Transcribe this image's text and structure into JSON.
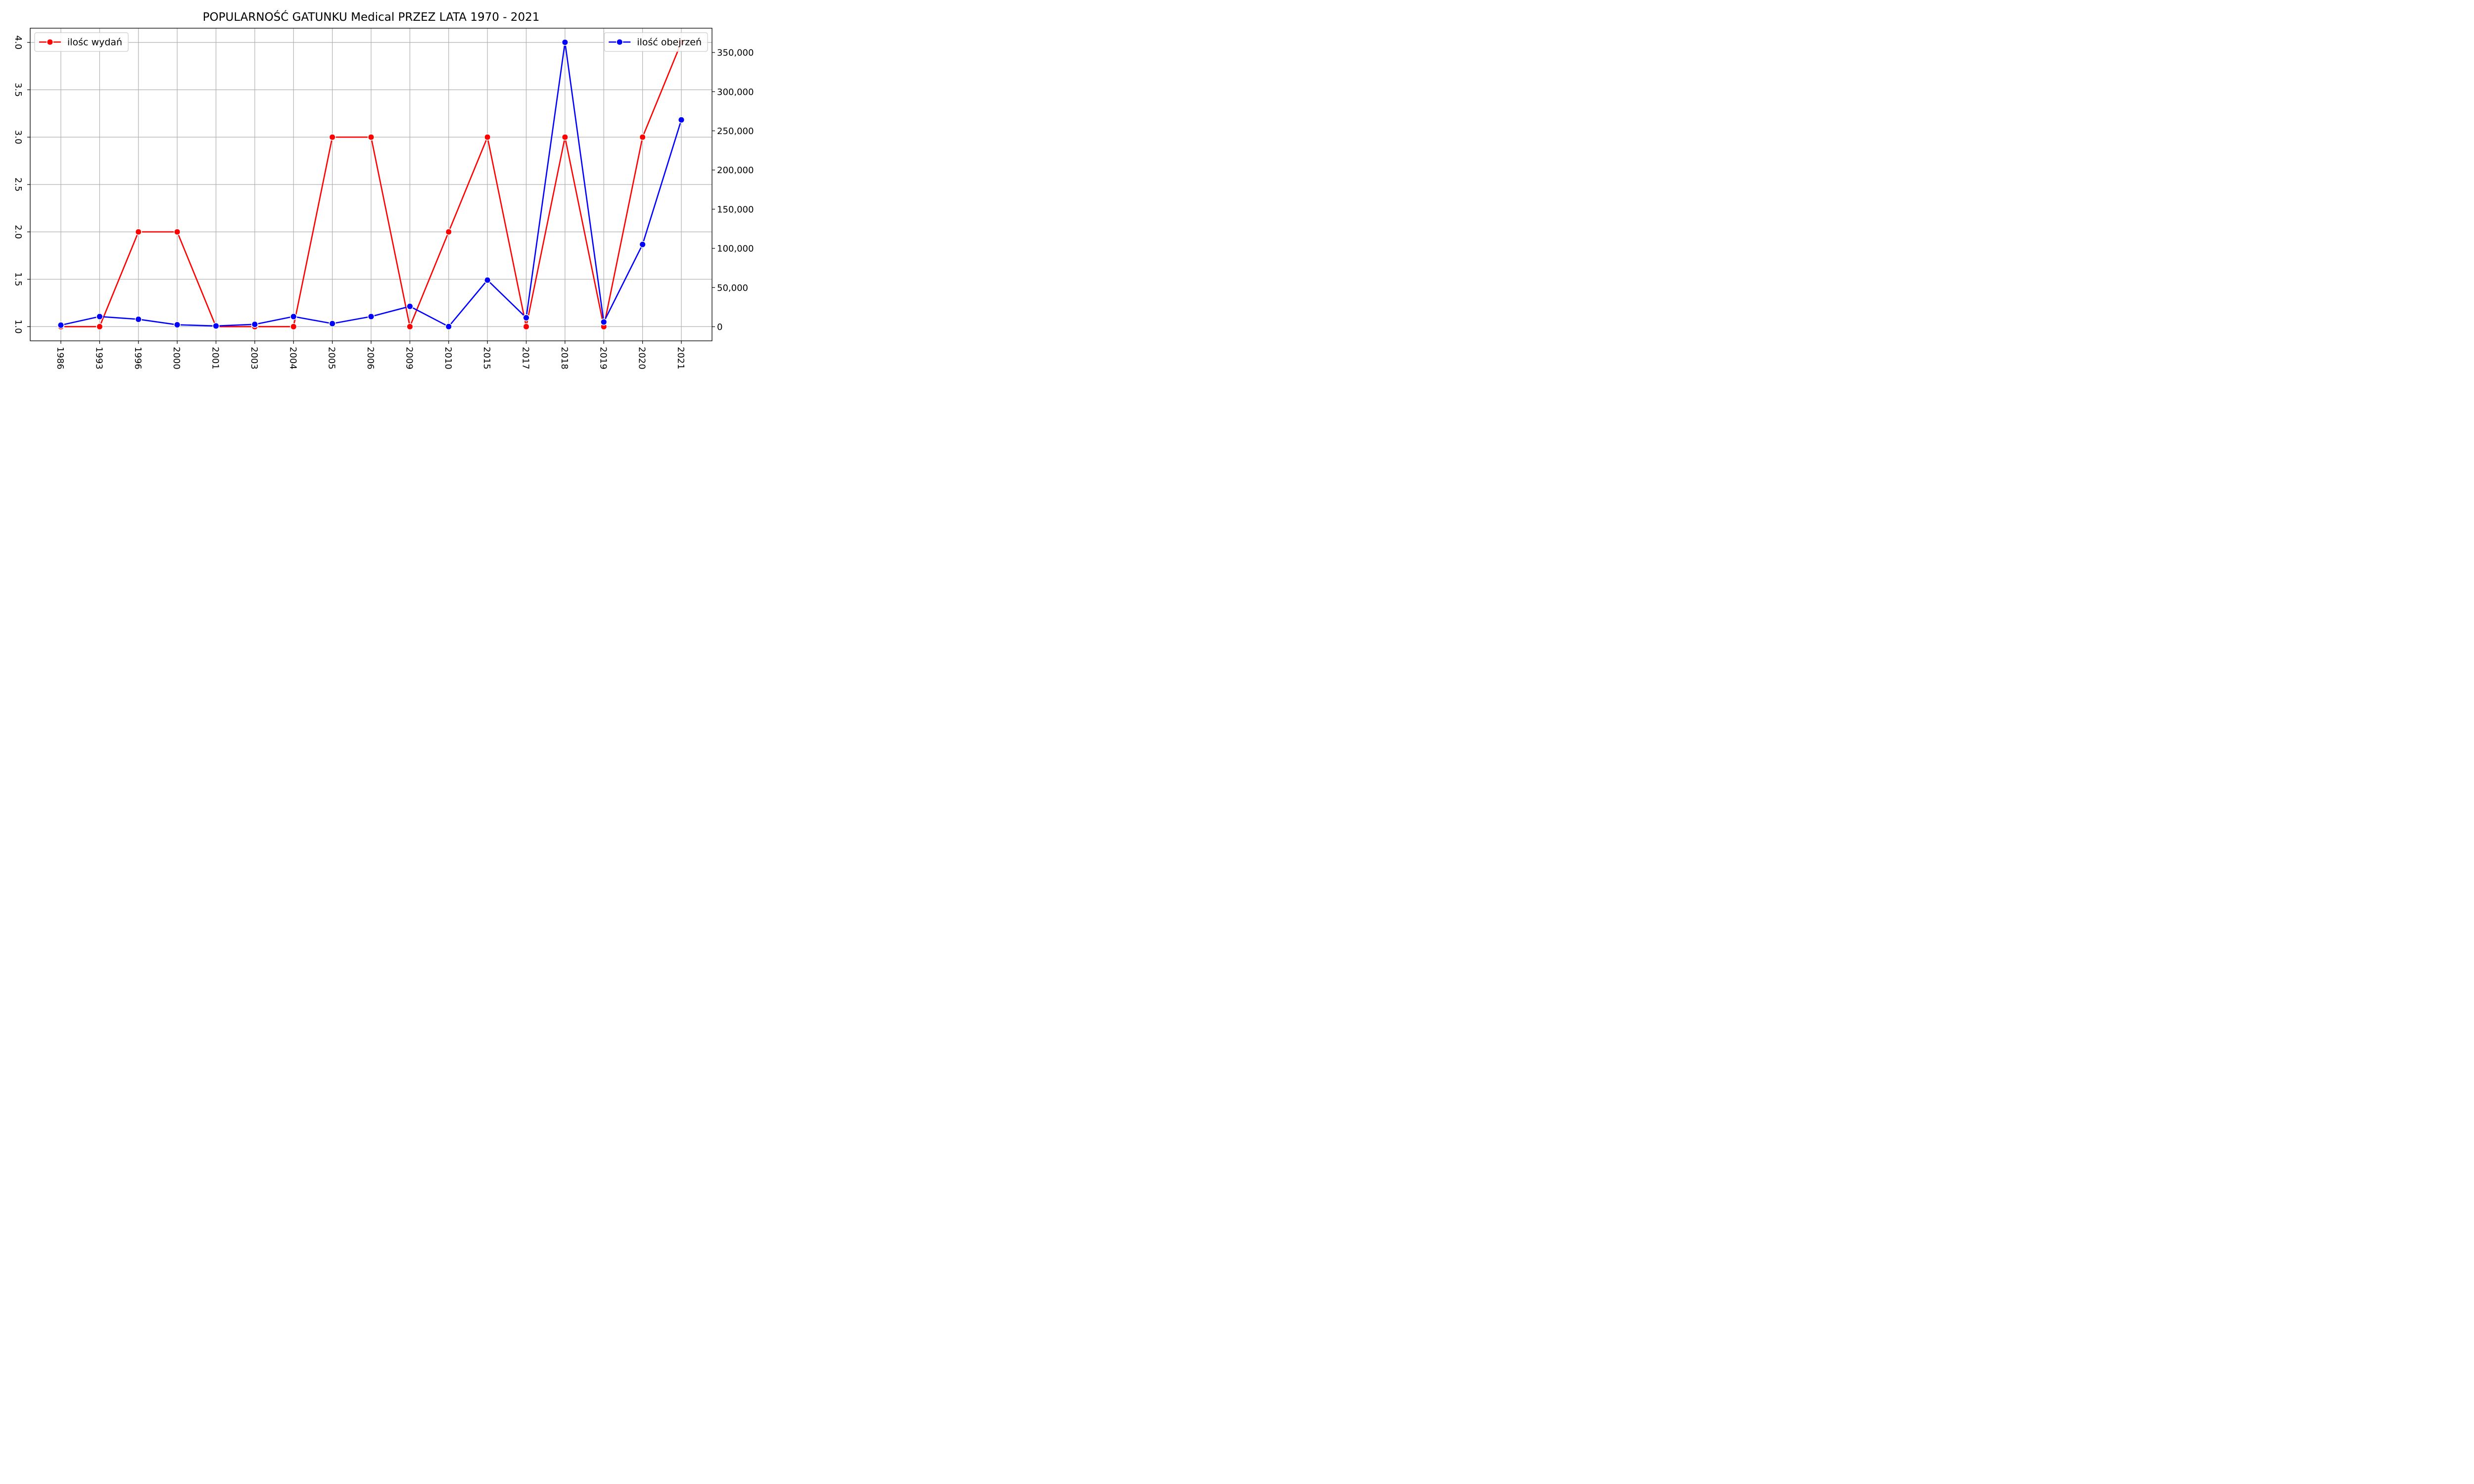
{
  "chart_data": {
    "type": "line",
    "title": "POPULARNOŚĆ GATUNKU Medical PRZEZ LATA 1970 - 2021",
    "xlabel": "",
    "ylabel_left": "",
    "ylabel_right": "",
    "categories": [
      "1986",
      "1993",
      "1996",
      "2000",
      "2001",
      "2003",
      "2004",
      "2005",
      "2006",
      "2009",
      "2010",
      "2015",
      "2017",
      "2018",
      "2019",
      "2020",
      "2021"
    ],
    "grid": true,
    "series": [
      {
        "name": "ilośc wydań",
        "axis": "left",
        "color": "#ff0000",
        "values": [
          1,
          1,
          2,
          2,
          1,
          1,
          1,
          3,
          3,
          1,
          2,
          3,
          1,
          3,
          1,
          3,
          4
        ]
      },
      {
        "name": "ilość obejrzeń",
        "axis": "right",
        "color": "#0000ff",
        "values": [
          2000,
          13000,
          9500,
          2500,
          1000,
          3000,
          13000,
          4000,
          13000,
          26000,
          200,
          59500,
          11500,
          363000,
          6000,
          105000,
          264000
        ]
      }
    ],
    "y_left": {
      "lim": [
        0.85,
        4.15
      ],
      "ticks": [
        1.0,
        1.5,
        2.0,
        2.5,
        3.0,
        3.5,
        4.0
      ],
      "tick_labels": [
        "1.0",
        "1.5",
        "2.0",
        "2.5",
        "3.0",
        "3.5",
        "4.0"
      ]
    },
    "y_right": {
      "lim": [
        -18000,
        381000
      ],
      "ticks": [
        0,
        50000,
        100000,
        150000,
        200000,
        250000,
        300000,
        350000
      ],
      "tick_labels": [
        "0",
        "50,000",
        "100,000",
        "150,000",
        "200,000",
        "250,000",
        "300,000",
        "350,000"
      ]
    },
    "legends": [
      {
        "series": "ilośc wydań",
        "placement": "top-left"
      },
      {
        "series": "ilość obejrzeń",
        "placement": "top-right"
      }
    ]
  }
}
